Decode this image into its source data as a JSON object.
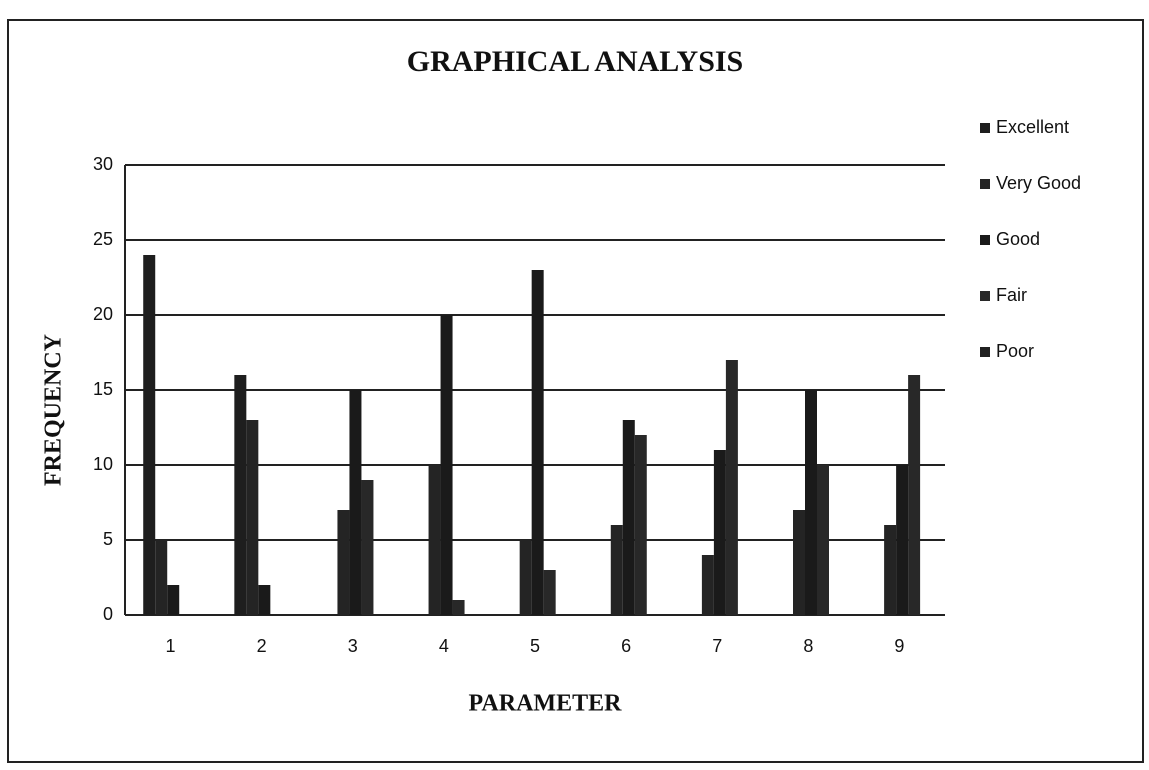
{
  "chart_data": {
    "type": "bar",
    "title": "GRAPHICAL ANALYSIS",
    "x_label": "PARAMETER",
    "y_label": "FREQUENCY",
    "categories": [
      "1",
      "2",
      "3",
      "4",
      "5",
      "6",
      "7",
      "8",
      "9"
    ],
    "series": [
      {
        "name": "Excellent",
        "color": "#1e1e1e",
        "values": [
          24,
          16,
          0,
          0,
          0,
          0,
          0,
          0,
          0
        ]
      },
      {
        "name": "Very Good",
        "color": "#242424",
        "values": [
          5,
          13,
          7,
          10,
          5,
          6,
          4,
          7,
          6
        ]
      },
      {
        "name": "Good",
        "color": "#1a1a1a",
        "values": [
          2,
          2,
          15,
          20,
          23,
          13,
          11,
          15,
          10
        ]
      },
      {
        "name": "Fair",
        "color": "#282828",
        "values": [
          0,
          0,
          9,
          1,
          3,
          12,
          17,
          10,
          16
        ]
      },
      {
        "name": "Poor",
        "color": "#202020",
        "values": [
          0,
          0,
          0,
          0,
          0,
          0,
          0,
          0,
          0
        ]
      }
    ],
    "ylim": [
      0,
      30
    ],
    "yticks": [
      0,
      5,
      10,
      15,
      20,
      25,
      30
    ],
    "grid": true,
    "legend": "right"
  }
}
